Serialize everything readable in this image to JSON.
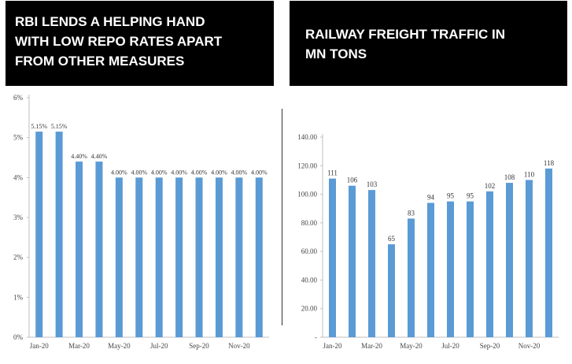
{
  "left_panel": {
    "title": "RBI LENDS A HELPING HAND\nWITH LOW REPO RATES APART\nFROM OTHER MEASURES"
  },
  "right_panel": {
    "title": "RAILWAY FREIGHT TRAFFIC IN\nMN TONS"
  },
  "colors": {
    "bar": "#5B9BD5",
    "title_bg": "#000000",
    "title_text": "#ffffff"
  },
  "chart_data": [
    {
      "type": "bar",
      "title": "RBI LENDS A HELPING HAND WITH LOW REPO RATES APART FROM OTHER MEASURES",
      "categories": [
        "Jan-20",
        "Feb-20",
        "Mar-20",
        "Apr-20",
        "May-20",
        "Jun-20",
        "Jul-20",
        "Aug-20",
        "Sep-20",
        "Oct-20",
        "Nov-20",
        "Dec-20"
      ],
      "values": [
        5.15,
        5.15,
        4.4,
        4.4,
        4.0,
        4.0,
        4.0,
        4.0,
        4.0,
        4.0,
        4.0,
        4.0
      ],
      "data_labels": [
        "5.15%",
        "5.15%",
        "4.40%",
        "4.40%",
        "4.00%",
        "4.00%",
        "4.00%",
        "4.00%",
        "4.00%",
        "4.00%",
        "4.00%",
        "4.00%"
      ],
      "x_tick_labels": [
        "Jan-20",
        "Mar-20",
        "May-20",
        "Jul-20",
        "Sep-20",
        "Nov-20"
      ],
      "y_ticks": [
        0,
        1,
        2,
        3,
        4,
        5,
        6
      ],
      "y_tick_labels": [
        "0%",
        "1%",
        "2%",
        "3%",
        "4%",
        "5%",
        "6%"
      ],
      "ylim": [
        0,
        6
      ],
      "xlabel": "",
      "ylabel": ""
    },
    {
      "type": "bar",
      "title": "RAILWAY FREIGHT TRAFFIC IN MN TONS",
      "categories": [
        "Jan-20",
        "Feb-20",
        "Mar-20",
        "Apr-20",
        "May-20",
        "Jun-20",
        "Jul-20",
        "Aug-20",
        "Sep-20",
        "Oct-20",
        "Nov-20",
        "Dec-20"
      ],
      "values": [
        111,
        106,
        103,
        65,
        83,
        94,
        95,
        95,
        102,
        108,
        110,
        118
      ],
      "data_labels": [
        "111",
        "106",
        "103",
        "65",
        "83",
        "94",
        "95",
        "95",
        "102",
        "108",
        "110",
        "118"
      ],
      "x_tick_labels": [
        "Jan-20",
        "Mar-20",
        "May-20",
        "Jul-20",
        "Sep-20",
        "Nov-20"
      ],
      "y_ticks": [
        0,
        20,
        40,
        60,
        80,
        100,
        120,
        140
      ],
      "y_tick_labels": [
        "-",
        "20.00",
        "40.00",
        "60.00",
        "80.00",
        "100.00",
        "120.00",
        "140.00"
      ],
      "ylim": [
        0,
        140
      ],
      "xlabel": "",
      "ylabel": ""
    }
  ]
}
